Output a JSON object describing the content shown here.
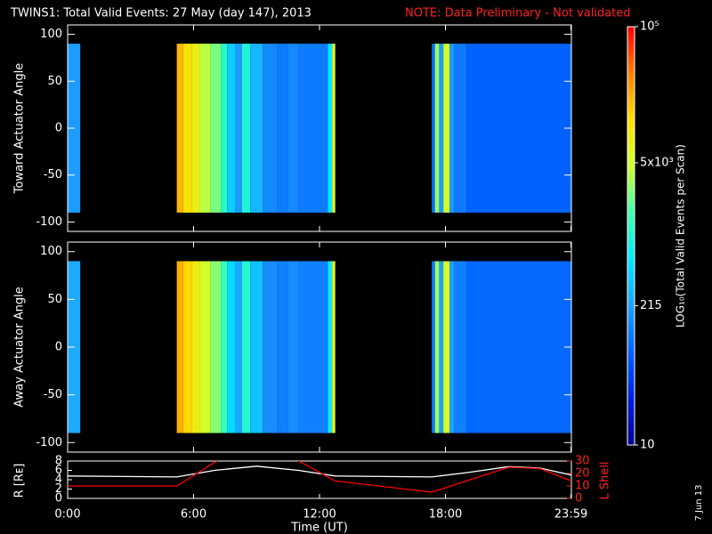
{
  "chart_data": {
    "type": "heatmap",
    "title": "TWINS1: Total Valid Events: 27 May (day 147), 2013",
    "note": "NOTE: Data Preliminary - Not validated",
    "xlabel": "Time (UT)",
    "date": "7 Jun 13",
    "xlim": [
      0,
      24
    ],
    "xticks": [
      {
        "value": 0,
        "label": "0:00"
      },
      {
        "value": 6,
        "label": "6:00"
      },
      {
        "value": 12,
        "label": "12:00"
      },
      {
        "value": 18,
        "label": "18:00"
      },
      {
        "value": 23.98,
        "label": "23:59"
      }
    ],
    "colormap": [
      "#000090",
      "#0020e0",
      "#0060ff",
      "#20a0ff",
      "#00e8ff",
      "#40ffb0",
      "#d0ff30",
      "#ffe000",
      "#ff8000",
      "#ff0000"
    ],
    "colorbar": {
      "label": "LOG₁₀(Total Valid Events per Scan)",
      "lim": [
        10,
        100000
      ],
      "log": true,
      "ticks": [
        {
          "value": 100000,
          "label": "10⁵"
        },
        {
          "value": 5000,
          "label": "5x10³"
        },
        215,
        10
      ]
    },
    "panels": [
      {
        "ylabel": "Toward Actuator Angle",
        "ylim": [
          -110,
          110
        ],
        "yticks": [
          100,
          50,
          0,
          -50,
          -100
        ],
        "angles": [
          -90,
          90
        ],
        "bins": [
          0,
          0.6,
          5.2,
          5.5,
          5.9,
          6.3,
          6.8,
          7.3,
          7.6,
          8.0,
          8.3,
          8.7,
          9.3,
          10.0,
          10.5,
          11.0,
          12.4,
          12.6,
          12.75,
          17.35,
          17.5,
          17.7,
          17.9,
          18.2,
          18.4,
          19.0,
          24
        ],
        "values": [
          200,
          null,
          20000,
          12000,
          8000,
          4000,
          2500,
          1200,
          400,
          200,
          1000,
          300,
          150,
          120,
          150,
          120,
          600,
          6000,
          null,
          100,
          3000,
          200,
          5000,
          200,
          120,
          80
        ]
      },
      {
        "ylabel": "Away Actuator Angle",
        "ylim": [
          -110,
          110
        ],
        "yticks": [
          100,
          50,
          0,
          -50,
          -100
        ],
        "angles": [
          -90,
          90
        ],
        "bins": [
          0,
          0.6,
          5.2,
          5.5,
          5.9,
          6.3,
          6.8,
          7.3,
          7.6,
          8.0,
          8.3,
          8.7,
          9.3,
          10.0,
          10.5,
          11.0,
          12.4,
          12.6,
          12.75,
          17.35,
          17.5,
          17.7,
          17.9,
          18.2,
          18.4,
          19.0,
          24
        ],
        "values": [
          250,
          null,
          22000,
          14000,
          9000,
          5000,
          2800,
          1500,
          500,
          250,
          1100,
          350,
          160,
          130,
          160,
          130,
          700,
          6500,
          null,
          110,
          3200,
          220,
          5200,
          220,
          130,
          90
        ]
      }
    ],
    "orbit": {
      "type": "line",
      "ylabel": "R [Rᴇ]",
      "ylim": [
        0,
        8
      ],
      "yticks": [
        0,
        2,
        4,
        6,
        8
      ],
      "y2label": "L Shell",
      "y2lim": [
        0,
        30
      ],
      "y2ticks": [
        0,
        10,
        20,
        30
      ],
      "series": [
        {
          "color": "#ffffff",
          "x": [
            0,
            5.2,
            7,
            9,
            11,
            12.75,
            17.35,
            19,
            21,
            22.5,
            24
          ],
          "values": [
            4.8,
            4.6,
            6,
            6.9,
            6,
            4.8,
            4.6,
            5.5,
            6.8,
            6.5,
            5
          ]
        },
        {
          "color": "#ff0000",
          "axis": "y2",
          "x": [
            0,
            5.2,
            7.2,
            10.9,
            12.75,
            17.35,
            21,
            22.5,
            24
          ],
          "values": [
            10,
            10,
            31,
            31,
            14,
            5,
            25,
            24,
            14
          ]
        }
      ]
    }
  }
}
